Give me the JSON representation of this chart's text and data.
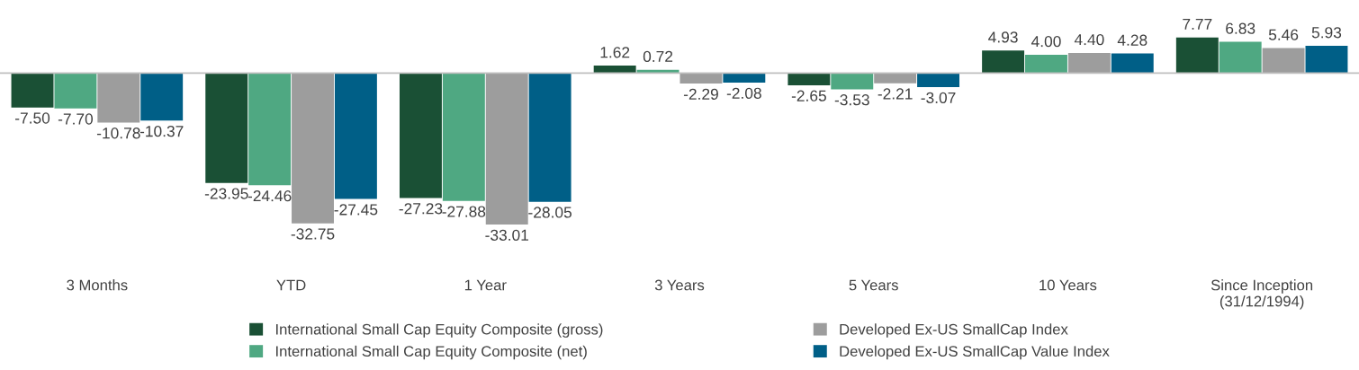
{
  "chart_data": {
    "type": "bar",
    "categories": [
      "3 Months",
      "YTD",
      "1 Year",
      "3 Years",
      "5 Years",
      "10 Years",
      "Since Inception\n(31/12/1994)"
    ],
    "series": [
      {
        "name": "International Small Cap Equity Composite (gross)",
        "color": "#1a5035",
        "values": [
          -7.5,
          -23.95,
          -27.23,
          1.62,
          -2.65,
          4.93,
          7.77
        ],
        "value_labels": [
          "-7.50",
          "-23.95",
          "-27.23",
          "1.62",
          "-2.65",
          "4.93",
          "7.77"
        ]
      },
      {
        "name": "International Small Cap Equity Composite (net)",
        "color": "#4fa882",
        "values": [
          -7.7,
          -24.46,
          -27.88,
          0.72,
          -3.53,
          4.0,
          6.83
        ],
        "value_labels": [
          "-7.70",
          "-24.46",
          "-27.88",
          "0.72",
          "-3.53",
          "4.00",
          "6.83"
        ]
      },
      {
        "name": "Developed Ex-US SmallCap Index",
        "color": "#9d9d9d",
        "values": [
          -10.78,
          -32.75,
          -33.01,
          -2.29,
          -2.21,
          4.4,
          5.46
        ],
        "value_labels": [
          "-10.78",
          "-32.75",
          "-33.01",
          "-2.29",
          "-2.21",
          "4.40",
          "5.46"
        ]
      },
      {
        "name": "Developed Ex-US SmallCap Value Index",
        "color": "#005f87",
        "values": [
          -10.37,
          -27.45,
          -28.05,
          -2.08,
          -3.07,
          4.28,
          5.93
        ],
        "value_labels": [
          "-10.37",
          "-27.45",
          "-28.05",
          "-2.08",
          "-3.07",
          "4.28",
          "5.93"
        ]
      }
    ],
    "data_labels": true,
    "legend": "bottom",
    "grid": false
  }
}
